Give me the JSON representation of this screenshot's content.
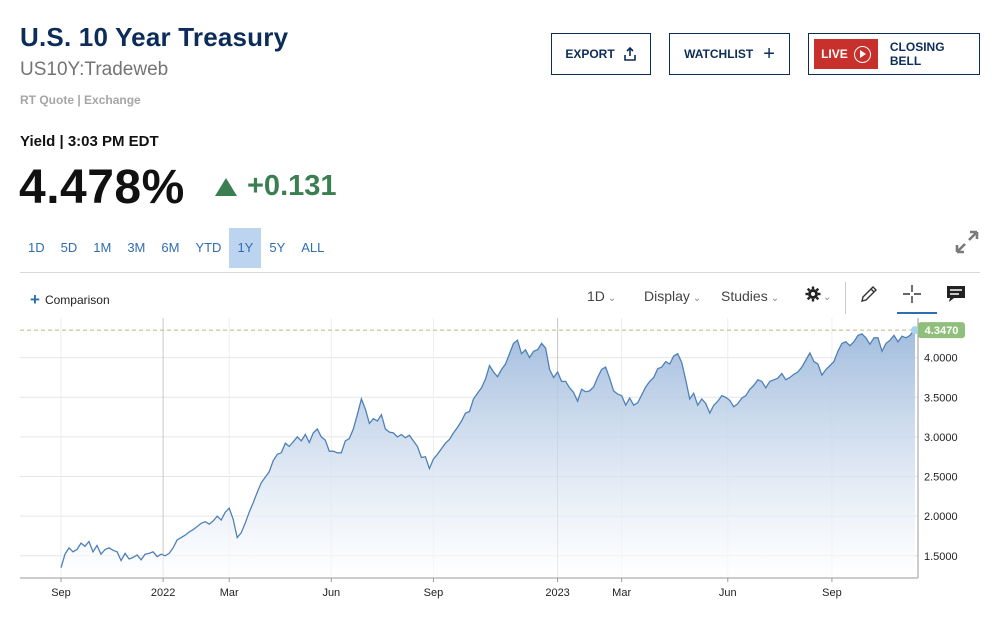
{
  "header": {
    "title": "U.S. 10 Year Treasury",
    "symbol": "US10Y:Tradeweb",
    "rt_quote": "RT Quote | Exchange",
    "yield_label": "Yield | 3:03 PM EDT",
    "price": "4.478%",
    "change": "+0.131",
    "change_color": "#3a7e51"
  },
  "buttons": {
    "export": "EXPORT",
    "watchlist": "WATCHLIST",
    "live": "LIVE",
    "closing_bell": "CLOSING BELL"
  },
  "ranges": [
    "1D",
    "5D",
    "1M",
    "3M",
    "6M",
    "YTD",
    "1Y",
    "5Y",
    "ALL"
  ],
  "active_range": "1Y",
  "toolbar": {
    "comparison": "Comparison",
    "interval": "1D",
    "display": "Display",
    "studies": "Studies"
  },
  "colors": {
    "title": "#0c2c5a",
    "accent": "#2e6db2",
    "live": "#c8302b",
    "line": "#4f81b6",
    "last_badge": "#8fbf7a"
  },
  "chart_data": {
    "type": "area",
    "x_ticks": [
      "Sep",
      "2022",
      "Mar",
      "Jun",
      "Sep",
      "2023",
      "Mar",
      "Jun",
      "Sep"
    ],
    "y_ticks": [
      "1.5000",
      "2.0000",
      "2.5000",
      "3.0000",
      "3.5000",
      "4.0000"
    ],
    "ylim": [
      1.22,
      4.5
    ],
    "last_value": "4.3470",
    "series": [
      {
        "values": [
          [
            0,
            1.35
          ],
          [
            4,
            1.52
          ],
          [
            8,
            1.6
          ],
          [
            12,
            1.55
          ],
          [
            16,
            1.58
          ],
          [
            20,
            1.66
          ],
          [
            24,
            1.62
          ],
          [
            28,
            1.68
          ],
          [
            32,
            1.55
          ],
          [
            36,
            1.63
          ],
          [
            40,
            1.52
          ],
          [
            44,
            1.58
          ],
          [
            48,
            1.6
          ],
          [
            52,
            1.57
          ],
          [
            56,
            1.55
          ],
          [
            60,
            1.44
          ],
          [
            64,
            1.53
          ],
          [
            68,
            1.46
          ],
          [
            72,
            1.48
          ],
          [
            76,
            1.51
          ],
          [
            80,
            1.45
          ],
          [
            84,
            1.52
          ],
          [
            88,
            1.53
          ],
          [
            92,
            1.55
          ],
          [
            96,
            1.49
          ],
          [
            100,
            1.52
          ],
          [
            104,
            1.5
          ],
          [
            108,
            1.53
          ],
          [
            112,
            1.6
          ],
          [
            116,
            1.7
          ],
          [
            120,
            1.73
          ],
          [
            124,
            1.76
          ],
          [
            128,
            1.8
          ],
          [
            132,
            1.83
          ],
          [
            136,
            1.87
          ],
          [
            140,
            1.91
          ],
          [
            144,
            1.93
          ],
          [
            148,
            1.9
          ],
          [
            152,
            1.94
          ],
          [
            156,
            2.0
          ],
          [
            160,
            1.95
          ],
          [
            164,
            2.05
          ],
          [
            168,
            2.1
          ],
          [
            172,
            1.96
          ],
          [
            176,
            1.73
          ],
          [
            180,
            1.79
          ],
          [
            184,
            1.91
          ],
          [
            188,
            2.05
          ],
          [
            192,
            2.17
          ],
          [
            196,
            2.3
          ],
          [
            200,
            2.42
          ],
          [
            204,
            2.49
          ],
          [
            208,
            2.56
          ],
          [
            212,
            2.7
          ],
          [
            216,
            2.78
          ],
          [
            220,
            2.8
          ],
          [
            224,
            2.92
          ],
          [
            228,
            2.88
          ],
          [
            232,
            2.94
          ],
          [
            236,
            3.0
          ],
          [
            240,
            2.95
          ],
          [
            244,
            3.03
          ],
          [
            248,
            2.93
          ],
          [
            252,
            3.05
          ],
          [
            256,
            3.1
          ],
          [
            260,
            3.0
          ],
          [
            264,
            2.96
          ],
          [
            268,
            2.82
          ],
          [
            272,
            2.82
          ],
          [
            276,
            2.8
          ],
          [
            280,
            2.8
          ],
          [
            284,
            2.95
          ],
          [
            288,
            2.98
          ],
          [
            292,
            3.1
          ],
          [
            296,
            3.28
          ],
          [
            300,
            3.48
          ],
          [
            304,
            3.35
          ],
          [
            308,
            3.17
          ],
          [
            312,
            3.23
          ],
          [
            316,
            3.2
          ],
          [
            320,
            3.28
          ],
          [
            324,
            3.1
          ],
          [
            328,
            3.06
          ],
          [
            332,
            3.05
          ],
          [
            336,
            3.0
          ],
          [
            340,
            3.03
          ],
          [
            344,
            2.99
          ],
          [
            348,
            3.02
          ],
          [
            352,
            2.95
          ],
          [
            356,
            2.88
          ],
          [
            360,
            2.74
          ],
          [
            364,
            2.75
          ],
          [
            368,
            2.6
          ],
          [
            372,
            2.72
          ],
          [
            376,
            2.78
          ],
          [
            380,
            2.85
          ],
          [
            384,
            2.92
          ],
          [
            388,
            2.97
          ],
          [
            392,
            3.05
          ],
          [
            396,
            3.12
          ],
          [
            400,
            3.2
          ],
          [
            404,
            3.3
          ],
          [
            408,
            3.32
          ],
          [
            412,
            3.48
          ],
          [
            416,
            3.55
          ],
          [
            420,
            3.62
          ],
          [
            424,
            3.73
          ],
          [
            428,
            3.9
          ],
          [
            432,
            3.82
          ],
          [
            436,
            3.76
          ],
          [
            440,
            3.85
          ],
          [
            444,
            3.92
          ],
          [
            448,
            4.05
          ],
          [
            452,
            4.18
          ],
          [
            456,
            4.22
          ],
          [
            460,
            4.05
          ],
          [
            464,
            4.1
          ],
          [
            468,
            4.0
          ],
          [
            472,
            4.08
          ],
          [
            476,
            4.1
          ],
          [
            480,
            4.18
          ],
          [
            484,
            4.12
          ],
          [
            488,
            3.85
          ],
          [
            492,
            3.75
          ],
          [
            496,
            3.82
          ],
          [
            500,
            3.7
          ],
          [
            504,
            3.7
          ],
          [
            508,
            3.62
          ],
          [
            512,
            3.56
          ],
          [
            516,
            3.45
          ],
          [
            520,
            3.6
          ],
          [
            524,
            3.57
          ],
          [
            528,
            3.58
          ],
          [
            532,
            3.63
          ],
          [
            536,
            3.75
          ],
          [
            540,
            3.85
          ],
          [
            544,
            3.88
          ],
          [
            548,
            3.74
          ],
          [
            552,
            3.58
          ],
          [
            556,
            3.54
          ],
          [
            560,
            3.52
          ],
          [
            564,
            3.4
          ],
          [
            568,
            3.49
          ],
          [
            572,
            3.4
          ],
          [
            576,
            3.43
          ],
          [
            580,
            3.53
          ],
          [
            584,
            3.63
          ],
          [
            588,
            3.7
          ],
          [
            592,
            3.75
          ],
          [
            596,
            3.86
          ],
          [
            600,
            3.88
          ],
          [
            604,
            3.95
          ],
          [
            608,
            3.92
          ],
          [
            612,
            4.02
          ],
          [
            616,
            4.05
          ],
          [
            620,
            3.94
          ],
          [
            624,
            3.72
          ],
          [
            628,
            3.48
          ],
          [
            632,
            3.55
          ],
          [
            636,
            3.4
          ],
          [
            640,
            3.48
          ],
          [
            644,
            3.42
          ],
          [
            648,
            3.3
          ],
          [
            652,
            3.4
          ],
          [
            656,
            3.45
          ],
          [
            660,
            3.52
          ],
          [
            664,
            3.5
          ],
          [
            668,
            3.46
          ],
          [
            672,
            3.38
          ],
          [
            676,
            3.42
          ],
          [
            680,
            3.49
          ],
          [
            684,
            3.52
          ],
          [
            688,
            3.6
          ],
          [
            692,
            3.65
          ],
          [
            696,
            3.72
          ],
          [
            700,
            3.7
          ],
          [
            704,
            3.62
          ],
          [
            708,
            3.7
          ],
          [
            712,
            3.72
          ],
          [
            716,
            3.74
          ],
          [
            720,
            3.8
          ],
          [
            724,
            3.72
          ],
          [
            728,
            3.75
          ],
          [
            732,
            3.79
          ],
          [
            736,
            3.82
          ],
          [
            740,
            3.88
          ],
          [
            744,
            3.97
          ],
          [
            748,
            4.06
          ],
          [
            752,
            3.95
          ],
          [
            756,
            3.92
          ],
          [
            760,
            3.78
          ],
          [
            764,
            3.85
          ],
          [
            768,
            3.9
          ],
          [
            772,
            3.95
          ],
          [
            776,
            4.08
          ],
          [
            780,
            4.18
          ],
          [
            784,
            4.2
          ],
          [
            788,
            4.15
          ],
          [
            792,
            4.2
          ],
          [
            796,
            4.28
          ],
          [
            800,
            4.3
          ],
          [
            804,
            4.25
          ],
          [
            808,
            4.17
          ],
          [
            812,
            4.25
          ],
          [
            816,
            4.25
          ],
          [
            820,
            4.08
          ],
          [
            824,
            4.18
          ],
          [
            828,
            4.22
          ],
          [
            832,
            4.28
          ],
          [
            836,
            4.2
          ],
          [
            840,
            4.27
          ],
          [
            844,
            4.25
          ],
          [
            848,
            4.28
          ],
          [
            851,
            4.33
          ],
          [
            853,
            4.347
          ]
        ]
      }
    ]
  }
}
